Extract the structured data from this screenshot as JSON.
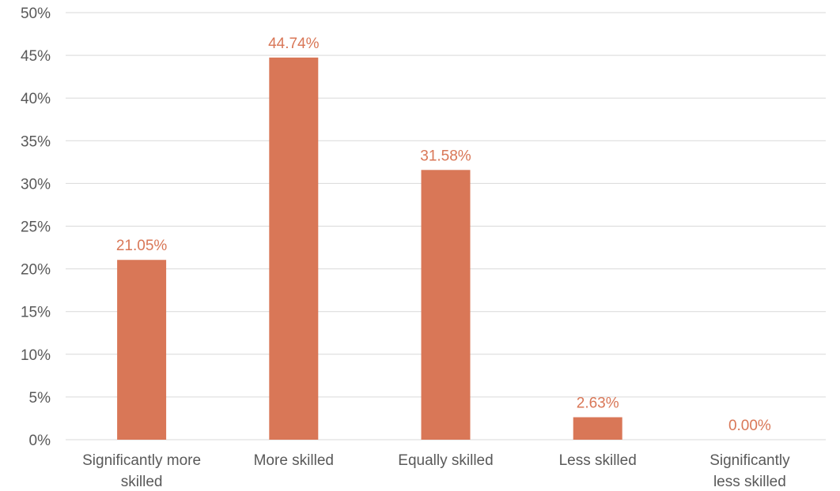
{
  "chart_data": {
    "type": "bar",
    "categories": [
      "Significantly more skilled",
      "More skilled",
      "Equally skilled",
      "Less skilled",
      "Significantly less skilled"
    ],
    "category_lines": [
      [
        "Significantly more",
        "skilled"
      ],
      [
        "More skilled"
      ],
      [
        "Equally skilled"
      ],
      [
        "Less skilled"
      ],
      [
        "Significantly",
        "less skilled"
      ]
    ],
    "values": [
      21.05,
      44.74,
      31.58,
      2.63,
      0.0
    ],
    "data_labels": [
      "21.05%",
      "44.74%",
      "31.58%",
      "2.63%",
      "0.00%"
    ],
    "y_ticks": [
      "0%",
      "5%",
      "10%",
      "15%",
      "20%",
      "25%",
      "30%",
      "35%",
      "40%",
      "45%",
      "50%"
    ],
    "ylim": [
      0,
      50
    ],
    "y_step": 5,
    "grid": true,
    "title": "",
    "xlabel": "",
    "ylabel": "",
    "bar_color": "#d97757",
    "label_color": "#d97757"
  }
}
